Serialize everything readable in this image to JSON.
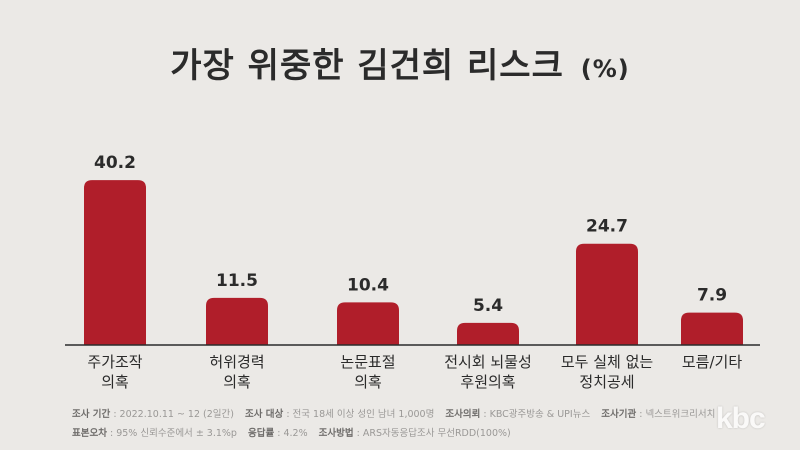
{
  "title": {
    "main": "가장 위중한 김건희 리스크",
    "unit": "(%)"
  },
  "chart_data": {
    "type": "bar",
    "categories": [
      [
        "주가조작",
        "의혹"
      ],
      [
        "허위경력",
        "의혹"
      ],
      [
        "논문표절",
        "의혹"
      ],
      [
        "전시회 뇌물성",
        "후원의혹"
      ],
      [
        "모두 실체 없는",
        "정치공세"
      ],
      [
        "모름/기타"
      ]
    ],
    "values": [
      40.2,
      11.5,
      10.4,
      5.4,
      24.7,
      7.9
    ],
    "value_labels": [
      "40.2",
      "11.5",
      "10.4",
      "5.4",
      "24.7",
      "7.9"
    ],
    "ylim": [
      0,
      45
    ],
    "grid": false,
    "bar_color": "#b01e2a"
  },
  "footer": {
    "period_label": "조사 기간",
    "period_value": ": 2022.10.11 ~ 12 (2일간)",
    "target_label": "조사 대상",
    "target_value": ": 전국 18세 이상 성인 남녀 1,000명",
    "client_label": "조사의뢰",
    "client_value": ": KBC광주방송 & UPI뉴스",
    "agency_label": "조사기관",
    "agency_value": ": 넥스트위크리서치",
    "error_label": "표본오차",
    "error_value": ": 95% 신뢰수준에서 ± 3.1%p",
    "response_label": "응답률",
    "response_value": ": 4.2%",
    "method_label": "조사방법",
    "method_value": ": ARS자동응답조사 무선RDD(100%)"
  },
  "logo": "kbc"
}
